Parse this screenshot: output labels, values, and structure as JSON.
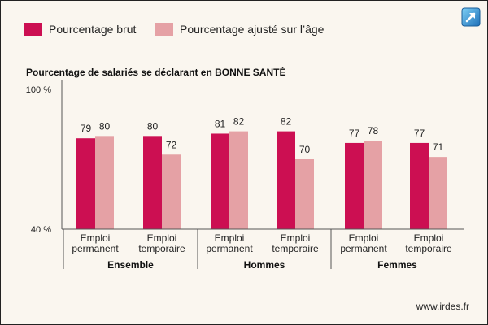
{
  "legend": {
    "brut_label": "Pourcentage brut",
    "ajuste_label": "Pourcentage ajusté sur l’âge"
  },
  "icons": {
    "expand": "expand-arrow-icon"
  },
  "colors": {
    "brut": "#cc0f52",
    "ajuste": "#e5a1a5",
    "background": "#faf6ef",
    "axis": "#555555"
  },
  "footer": {
    "source": "www.irdes.fr"
  },
  "chart_data": {
    "type": "bar",
    "title": "Pourcentage de salariés se déclarant en BONNE SANTÉ",
    "ylim": [
      40,
      100
    ],
    "ytick_labels": [
      "100 %",
      "40 %"
    ],
    "groups": [
      "Ensemble",
      "Hommes",
      "Femmes"
    ],
    "categories": [
      [
        "Emploi",
        "permanent"
      ],
      [
        "Emploi",
        "temporaire"
      ],
      [
        "Emploi",
        "permanent"
      ],
      [
        "Emploi",
        "temporaire"
      ],
      [
        "Emploi",
        "permanent"
      ],
      [
        "Emploi",
        "temporaire"
      ]
    ],
    "series": [
      {
        "name": "Pourcentage brut",
        "values": [
          79,
          80,
          81,
          82,
          77,
          77
        ]
      },
      {
        "name": "Pourcentage ajusté sur l’âge",
        "values": [
          80,
          72,
          82,
          70,
          78,
          71
        ]
      }
    ],
    "grid": false,
    "legend_position": "top-left"
  }
}
